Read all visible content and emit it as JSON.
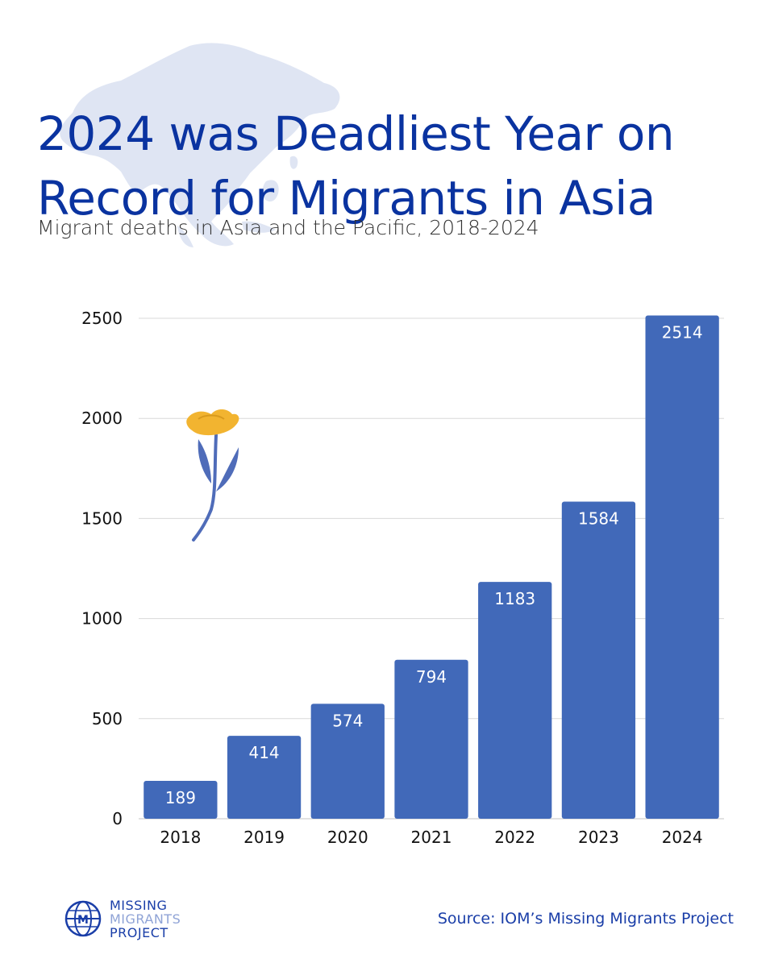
{
  "title": "2024 was Deadliest Year on Record for Migrants in Asia",
  "subtitle": "Migrant deaths in Asia and the Pacific, 2018-2024",
  "source": "Source: IOM’s Missing Migrants Project",
  "logo": {
    "line1": "MISSING",
    "line2": "MIGRANTS",
    "line3": "PROJECT",
    "icon": "globe-icon"
  },
  "decorations": {
    "background": "asia-map-silhouette",
    "flower": "yellow-flower-icon"
  },
  "colors": {
    "title": "#0a33a0",
    "bar": "#4169b9",
    "grid": "#d9d9d9",
    "map": "#dfe5f3",
    "flower_petal": "#f2b430",
    "flower_stem": "#4f6cb9"
  },
  "chart_data": {
    "type": "bar",
    "categories": [
      "2018",
      "2019",
      "2020",
      "2021",
      "2022",
      "2023",
      "2024"
    ],
    "values": [
      189,
      414,
      574,
      794,
      1183,
      1584,
      2514
    ],
    "yticks": [
      0,
      500,
      1000,
      1500,
      2000,
      2500
    ],
    "ylim": [
      0,
      2500
    ],
    "grid": true,
    "data_labels": true
  }
}
